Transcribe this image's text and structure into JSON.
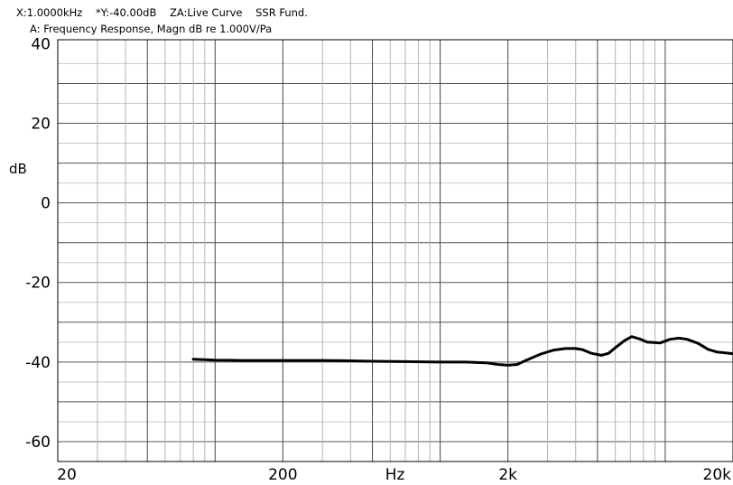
{
  "header": {
    "cursor_x": "X:1.0000kHz",
    "cursor_y": "*Y:-40.00dB",
    "zoom_a": "ZA:Live Curve",
    "mode": "SSR Fund."
  },
  "chart_data": {
    "type": "line",
    "title": "A: Frequency Response, Magn dB re 1.000V/Pa",
    "xlabel": "Hz",
    "ylabel": "dB",
    "x_scale": "log",
    "xlim": [
      20,
      20000
    ],
    "ylim": [
      -65,
      41
    ],
    "y_ticks": [
      40,
      20,
      0,
      -20,
      -40,
      -60
    ],
    "x_ticks": [
      {
        "value": 20,
        "label": "20"
      },
      {
        "value": 200,
        "label": "200"
      },
      {
        "value": 2000,
        "label": "2k"
      },
      {
        "value": 20000,
        "label": "20k"
      }
    ],
    "x_unit_label_at": 630,
    "grid": true,
    "series": [
      {
        "points": [
          [
            80,
            -39.3
          ],
          [
            100,
            -39.5
          ],
          [
            130,
            -39.6
          ],
          [
            200,
            -39.6
          ],
          [
            300,
            -39.6
          ],
          [
            400,
            -39.7
          ],
          [
            500,
            -39.8
          ],
          [
            700,
            -39.9
          ],
          [
            1000,
            -40.0
          ],
          [
            1300,
            -40.0
          ],
          [
            1600,
            -40.2
          ],
          [
            1800,
            -40.6
          ],
          [
            2000,
            -40.8
          ],
          [
            2200,
            -40.6
          ],
          [
            2400,
            -39.6
          ],
          [
            2800,
            -38.0
          ],
          [
            3200,
            -37.0
          ],
          [
            3600,
            -36.6
          ],
          [
            4000,
            -36.6
          ],
          [
            4300,
            -36.9
          ],
          [
            4700,
            -37.8
          ],
          [
            5200,
            -38.3
          ],
          [
            5600,
            -37.8
          ],
          [
            6000,
            -36.4
          ],
          [
            6600,
            -34.6
          ],
          [
            7100,
            -33.6
          ],
          [
            7700,
            -34.2
          ],
          [
            8300,
            -35.0
          ],
          [
            9500,
            -35.2
          ],
          [
            10500,
            -34.3
          ],
          [
            11500,
            -34.0
          ],
          [
            12500,
            -34.3
          ],
          [
            14000,
            -35.3
          ],
          [
            15500,
            -36.8
          ],
          [
            17000,
            -37.5
          ],
          [
            20000,
            -37.9
          ]
        ]
      }
    ]
  }
}
